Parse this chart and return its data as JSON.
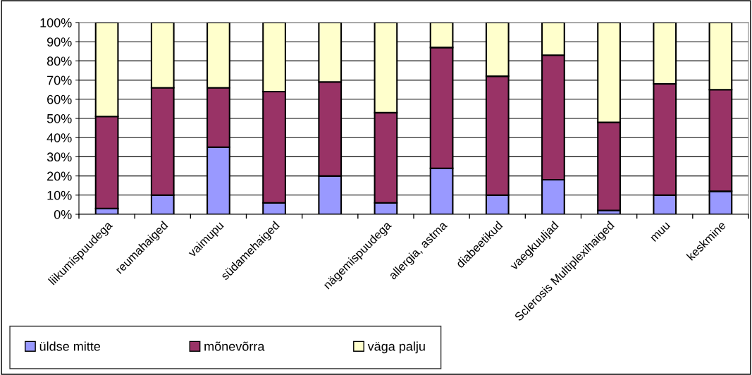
{
  "chart_data": {
    "type": "bar",
    "stacked": true,
    "categories": [
      "liikumispuudega",
      "reumahaiged",
      "vaimupu",
      "südamehaiged",
      null,
      "nägemispuudega",
      "allergia, astma",
      "diabeetikud",
      "vaegkuuljad",
      "Sclerosis Multiplexihaiged",
      "muu",
      "keskmine"
    ],
    "series": [
      {
        "name": "üldse mitte",
        "color": "#9999ff",
        "values": [
          3,
          10,
          35,
          6,
          20,
          6,
          24,
          10,
          18,
          2,
          10,
          12
        ]
      },
      {
        "name": "mõnevõrra",
        "color": "#993366",
        "values": [
          48,
          56,
          31,
          58,
          49,
          47,
          63,
          62,
          65,
          46,
          58,
          53
        ]
      },
      {
        "name": "väga palju",
        "color": "#ffffcc",
        "values": [
          49,
          34,
          34,
          36,
          31,
          47,
          13,
          28,
          17,
          52,
          32,
          35
        ]
      }
    ],
    "ylim": [
      0,
      100
    ],
    "yticks": [
      {
        "value": 0,
        "label": "0%"
      },
      {
        "value": 10,
        "label": "10%"
      },
      {
        "value": 20,
        "label": "20%"
      },
      {
        "value": 30,
        "label": "30%"
      },
      {
        "value": 40,
        "label": "40%"
      },
      {
        "value": 50,
        "label": "50%"
      },
      {
        "value": 60,
        "label": "60%"
      },
      {
        "value": 70,
        "label": "70%"
      },
      {
        "value": 80,
        "label": "80%"
      },
      {
        "value": 90,
        "label": "90%"
      },
      {
        "value": 100,
        "label": "100%"
      }
    ],
    "grid": "y",
    "legend": "bottom left"
  }
}
